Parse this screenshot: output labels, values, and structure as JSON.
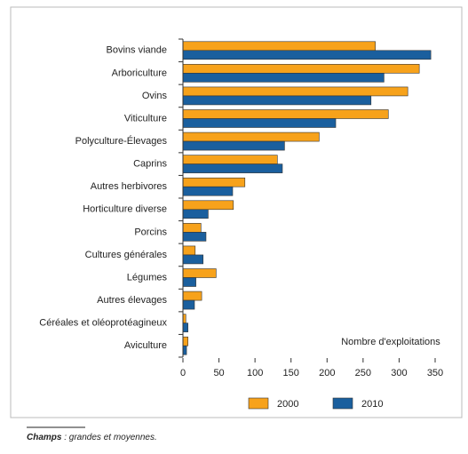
{
  "chart_data": {
    "type": "barh",
    "categories": [
      "Bovins viande",
      "Arboriculture",
      "Ovins",
      "Viticulture",
      "Polyculture-Élevages",
      "Caprins",
      "Autres herbivores",
      "Horticulture diverse",
      "Porcins",
      "Cultures générales",
      "Légumes",
      "Autres élevages",
      "Céréales et oléoprotéagineux",
      "Aviculture"
    ],
    "series": [
      {
        "name": "2000",
        "color": "#f7a21b",
        "values": [
          267,
          328,
          312,
          285,
          189,
          131,
          86,
          70,
          25,
          17,
          46,
          26,
          4,
          7
        ]
      },
      {
        "name": "2010",
        "color": "#1a5f9e",
        "values": [
          344,
          279,
          261,
          212,
          141,
          138,
          69,
          35,
          32,
          28,
          18,
          16,
          7,
          5
        ]
      }
    ],
    "xlabel": "Nombre d'exploitations",
    "xlim": [
      0,
      350
    ],
    "xticks": [
      0,
      50,
      100,
      150,
      200,
      250,
      300,
      350
    ],
    "grid": false,
    "legend": "bottom"
  },
  "footnote": {
    "label": "Champs",
    "text": " : grandes et moyennes."
  }
}
